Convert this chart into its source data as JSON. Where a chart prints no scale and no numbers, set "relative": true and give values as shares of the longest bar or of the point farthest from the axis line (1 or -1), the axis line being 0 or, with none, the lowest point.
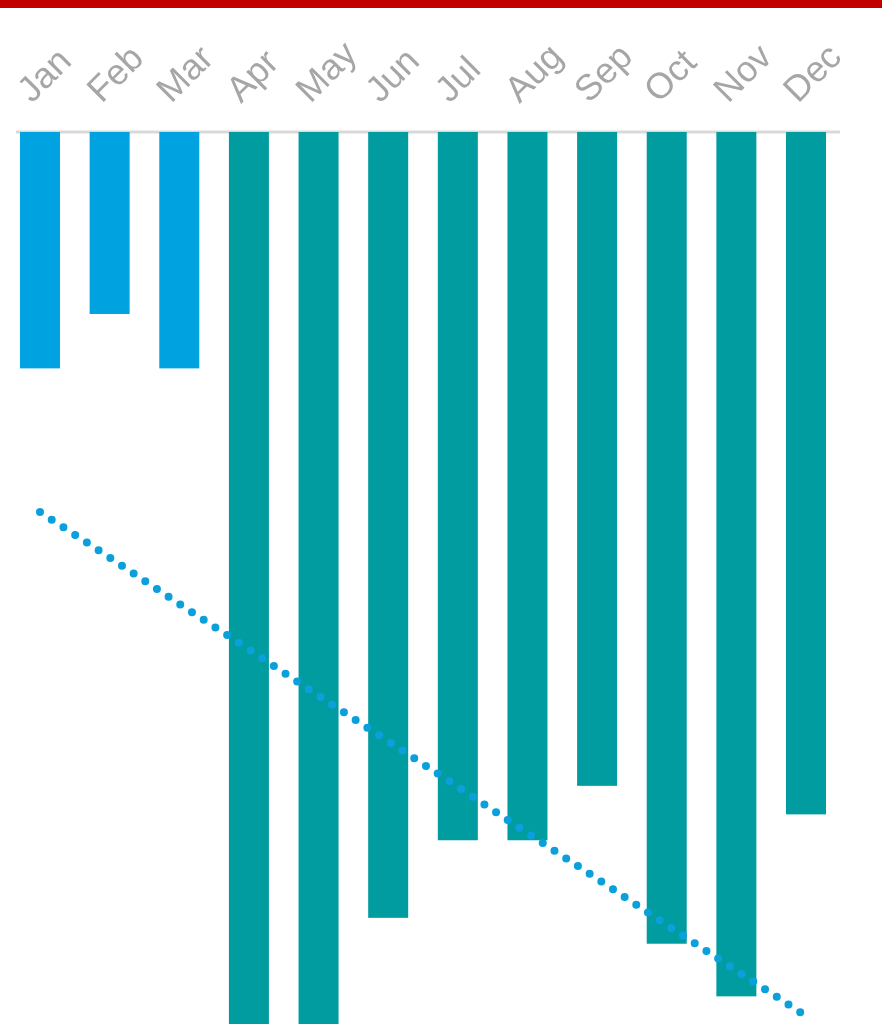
{
  "chart_data": {
    "type": "bar",
    "relative": true,
    "categories": [
      "Jan",
      "Feb",
      "Mar",
      "Apr",
      "May",
      "Jun",
      "Jul",
      "Aug",
      "Sep",
      "Oct",
      "Nov",
      "Dec"
    ],
    "series": [
      {
        "colors": [
          "#00a3e0",
          "#00a3e0",
          "#00a3e0",
          "#009ca0",
          "#009ca0",
          "#009ca0",
          "#009ca0",
          "#009ca0",
          "#009ca0",
          "#009ca0",
          "#009ca0",
          "#009ca0"
        ],
        "values": [
          -0.265,
          -0.204,
          -0.265,
          -1,
          -1,
          -0.881,
          -0.794,
          -0.794,
          -0.733,
          -0.91,
          -0.969,
          -0.765
        ]
      },
      {
        "type": "line",
        "color": "#0aa0dc",
        "line_style": "dotted",
        "marker": "none",
        "values": [
          -0.426,
          -0.477,
          -0.529,
          -0.58,
          -0.632,
          -0.683,
          -0.734,
          -0.786,
          -0.837,
          -0.889,
          -0.94,
          -0.991
        ]
      }
    ]
  }
}
